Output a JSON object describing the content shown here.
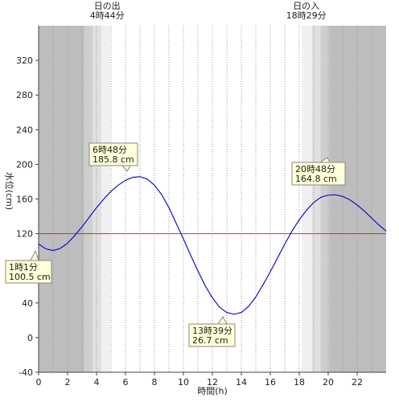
{
  "chart_data": {
    "type": "line",
    "xlabel": "時間(h)",
    "ylabel": "水位(cm)",
    "xlim": [
      0,
      24
    ],
    "ylim": [
      -40,
      360
    ],
    "x_ticks": [
      0,
      2,
      4,
      6,
      8,
      10,
      12,
      14,
      16,
      18,
      20,
      22
    ],
    "y_ticks": [
      -40,
      0,
      40,
      80,
      120,
      160,
      200,
      240,
      280,
      320
    ],
    "grid": "vertical dotted every 1h",
    "reference_line": {
      "value": 120,
      "color": "#ee2222"
    },
    "sunrise": {
      "label": "日の出",
      "time": "4時44分",
      "hour": 4.733
    },
    "sunset": {
      "label": "日の入",
      "time": "18時29分",
      "hour": 18.483
    },
    "series": [
      {
        "color": "#1010cc",
        "x": [
          0,
          0.5,
          1,
          1.5,
          2,
          2.5,
          3,
          3.5,
          4,
          4.5,
          5,
          5.5,
          6,
          6.5,
          7,
          7.5,
          8,
          8.5,
          9,
          9.5,
          10,
          10.5,
          11,
          11.5,
          12,
          12.5,
          13,
          13.5,
          14,
          14.5,
          15,
          15.5,
          16,
          16.5,
          17,
          17.5,
          18,
          18.5,
          19,
          19.5,
          20,
          20.5,
          21,
          21.5,
          22,
          22.5,
          23,
          23.5,
          24
        ],
        "values": [
          108,
          102.5,
          100.5,
          103,
          109,
          118,
          128,
          139,
          150,
          160,
          169,
          176,
          181.5,
          185,
          185.8,
          183,
          176,
          165,
          150,
          132,
          114,
          95,
          77,
          60,
          46,
          35,
          29,
          27,
          29,
          36,
          47,
          61,
          76,
          92,
          108,
          123,
          136,
          147,
          156,
          162,
          164.5,
          164.8,
          163,
          159,
          153,
          146,
          138,
          130,
          123
        ]
      }
    ],
    "annotations": [
      {
        "time": "1時1分",
        "value": "100.5 cm"
      },
      {
        "time": "6時48分",
        "value": "185.8 cm"
      },
      {
        "time": "13時39分",
        "value": "26.7 cm"
      },
      {
        "time": "20時48分",
        "value": "164.8 cm"
      }
    ]
  }
}
